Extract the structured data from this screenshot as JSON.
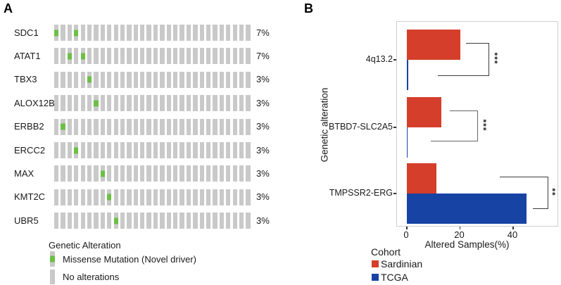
{
  "panels": {
    "a_label": "A",
    "b_label": "B"
  },
  "chart_data": [
    {
      "type": "heatmap",
      "subtype": "oncoprint",
      "panel": "A",
      "n_samples": 30,
      "genes": [
        "SDC1",
        "ATAT1",
        "TBX3",
        "ALOX12B",
        "ERBB2",
        "ERCC2",
        "MAX",
        "KMT2C",
        "UBR5"
      ],
      "alteration_pct": [
        "7%",
        "7%",
        "3%",
        "3%",
        "3%",
        "3%",
        "3%",
        "3%",
        "3%"
      ],
      "missense_sample_indices": [
        [
          0,
          3
        ],
        [
          2,
          4
        ],
        [
          5
        ],
        [
          6
        ],
        [
          1
        ],
        [
          3
        ],
        [
          7
        ],
        [
          8
        ],
        [
          9
        ]
      ],
      "legend_title": "Genetic Alteration",
      "legend_items": [
        "Missense Mutation (Novel driver)",
        "No alterations"
      ],
      "colors": {
        "missense": "#6cbf45",
        "no_alteration": "#c9c9c9"
      }
    },
    {
      "type": "bar",
      "panel": "B",
      "orientation": "horizontal",
      "categories": [
        "4q13.2",
        "BTBD7-SLC2A5",
        "TMPSSR2-ERG"
      ],
      "series": [
        {
          "name": "Sardinian",
          "color": "#d53e2a",
          "values": [
            20,
            13,
            11
          ]
        },
        {
          "name": "TCGA",
          "color": "#1743a5",
          "values": [
            0.4,
            0.3,
            45
          ]
        }
      ],
      "significance": [
        "***",
        "***",
        "**"
      ],
      "xlabel": "Altered Samples(%)",
      "ylabel": "Genetic alteration",
      "xticks": [
        "0",
        "20",
        "40"
      ],
      "xtick_values": [
        0,
        20,
        40
      ],
      "xlim": [
        0,
        57
      ],
      "grid": false,
      "legend_title": "Cohort",
      "legend_position": "bottom-left"
    }
  ]
}
